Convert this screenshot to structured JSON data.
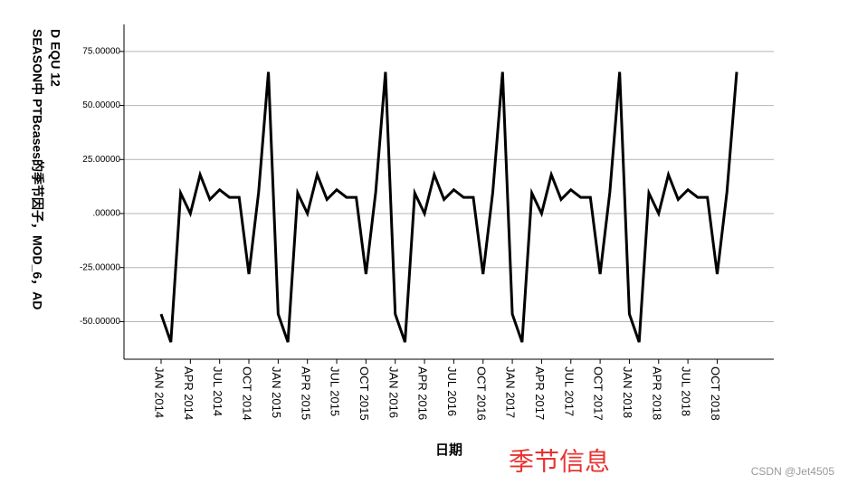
{
  "chart_data": {
    "type": "line",
    "y_label_lines": [
      "D EQU 12",
      "SEASON中 PTBcases的季节因子，MOD_6，AD"
    ],
    "x_label": "日期",
    "annotation": "季节信息",
    "watermark": "CSDN @Jet4505",
    "categories": [
      "JAN 2014",
      null,
      null,
      "APR 2014",
      null,
      null,
      "JUL 2014",
      null,
      null,
      "OCT 2014",
      null,
      null,
      "JAN 2015",
      null,
      null,
      "APR 2015",
      null,
      null,
      "JUL 2015",
      null,
      null,
      "OCT 2015",
      null,
      null,
      "JAN 2016",
      null,
      null,
      "APR 2016",
      null,
      null,
      "JUL 2016",
      null,
      null,
      "OCT 2016",
      null,
      null,
      "JAN 2017",
      null,
      null,
      "APR 2017",
      null,
      null,
      "JUL 2017",
      null,
      null,
      "OCT 2017",
      null,
      null,
      "JAN 2018",
      null,
      null,
      "APR 2018",
      null,
      null,
      "JUL 2018",
      null,
      null,
      "OCT 2018",
      null,
      null
    ],
    "series": [
      {
        "color": "#000000",
        "values": [
          -46.5,
          -59.5,
          9.5,
          0,
          18,
          6.5,
          11,
          7.5,
          7.5,
          -28,
          10,
          65.5,
          -46.5,
          -59.5,
          9.5,
          0,
          18,
          6.5,
          11,
          7.5,
          7.5,
          -28,
          10,
          65.5,
          -46.5,
          -59.5,
          9.5,
          0,
          18,
          6.5,
          11,
          7.5,
          7.5,
          -28,
          10,
          65.5,
          -46.5,
          -59.5,
          9.5,
          0,
          18,
          6.5,
          11,
          7.5,
          7.5,
          -28,
          10,
          65.5,
          -46.5,
          -59.5,
          9.5,
          0,
          18,
          6.5,
          11,
          7.5,
          7.5,
          -28,
          10,
          65.5
        ]
      }
    ],
    "ylim": [
      -67.4,
      87.5
    ],
    "yticks": [
      {
        "value": -50,
        "label": "-50.00000"
      },
      {
        "value": -25,
        "label": "-25.00000"
      },
      {
        "value": 0,
        "label": ".00000"
      },
      {
        "value": 25,
        "label": "25.00000"
      },
      {
        "value": 50,
        "label": "50.00000"
      },
      {
        "value": 75,
        "label": "75.00000"
      }
    ],
    "grid": true
  }
}
